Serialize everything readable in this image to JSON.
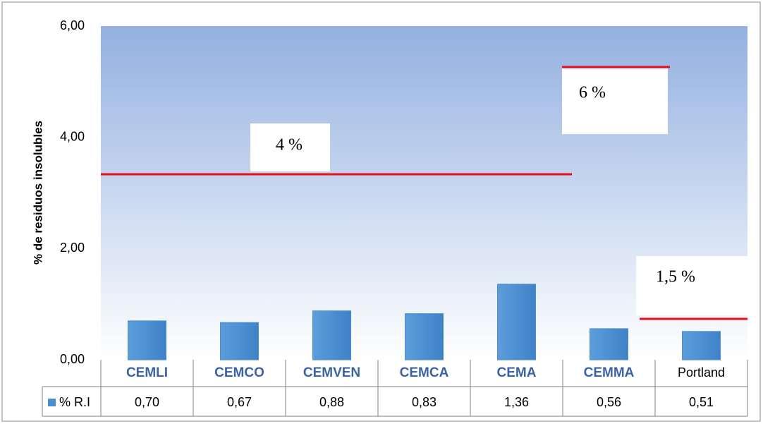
{
  "chart_data": {
    "type": "bar",
    "y_label": "% de residuos insolubles",
    "categories": [
      "CEMLI",
      "CEMCO",
      "CEMVEN",
      "CEMCA",
      "CEMA",
      "CEMMA",
      "Portland"
    ],
    "series": [
      {
        "name": "% R.I",
        "color": "#4a8ed0",
        "values": [
          0.7,
          0.67,
          0.88,
          0.83,
          1.36,
          0.56,
          0.51
        ],
        "value_labels": [
          "0,70",
          "0,67",
          "0,88",
          "0,83",
          "1,36",
          "0,56",
          "0,51"
        ]
      }
    ],
    "ylim": [
      0,
      6
    ],
    "yticks": [
      {
        "value": 0,
        "label": "0,00"
      },
      {
        "value": 2,
        "label": "2,00"
      },
      {
        "value": 4,
        "label": "4,00"
      },
      {
        "value": 6,
        "label": "6,00"
      }
    ],
    "grid": false,
    "annotations": [
      "4 %",
      "6 %",
      "1,5 %"
    ]
  }
}
